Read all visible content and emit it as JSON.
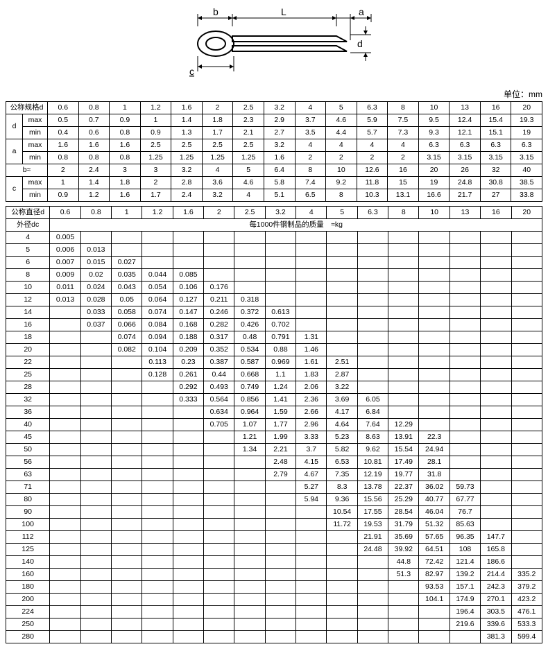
{
  "unit_label": "单位：mm",
  "diagram": {
    "labels": {
      "b": "b",
      "L": "L",
      "a": "a",
      "d": "d",
      "c": "c"
    }
  },
  "nominal_d_label": "公称规格d",
  "nominal_d2_label": "公称直径d",
  "outer_dc_label": "外径dc",
  "mass_header": "每1000件钢制品的质量　≈kg",
  "sizes": [
    "0.6",
    "0.8",
    "1",
    "1.2",
    "1.6",
    "2",
    "2.5",
    "3.2",
    "4",
    "5",
    "6.3",
    "8",
    "10",
    "13",
    "16",
    "20"
  ],
  "rows": {
    "d": {
      "label": "d",
      "max_label": "max",
      "min_label": "min",
      "max": [
        "0.5",
        "0.7",
        "0.9",
        "1",
        "1.4",
        "1.8",
        "2.3",
        "2.9",
        "3.7",
        "4.6",
        "5.9",
        "7.5",
        "9.5",
        "12.4",
        "15.4",
        "19.3"
      ],
      "min": [
        "0.4",
        "0.6",
        "0.8",
        "0.9",
        "1.3",
        "1.7",
        "2.1",
        "2.7",
        "3.5",
        "4.4",
        "5.7",
        "7.3",
        "9.3",
        "12.1",
        "15.1",
        "19"
      ]
    },
    "a": {
      "label": "a",
      "max_label": "max",
      "min_label": "min",
      "max": [
        "1.6",
        "1.6",
        "1.6",
        "2.5",
        "2.5",
        "2.5",
        "2.5",
        "3.2",
        "4",
        "4",
        "4",
        "4",
        "6.3",
        "6.3",
        "6.3",
        "6.3"
      ],
      "min": [
        "0.8",
        "0.8",
        "0.8",
        "1.25",
        "1.25",
        "1.25",
        "1.25",
        "1.6",
        "2",
        "2",
        "2",
        "2",
        "3.15",
        "3.15",
        "3.15",
        "3.15"
      ]
    },
    "b": {
      "label": "b≈",
      "vals": [
        "2",
        "2.4",
        "3",
        "3",
        "3.2",
        "4",
        "5",
        "6.4",
        "8",
        "10",
        "12.6",
        "16",
        "20",
        "26",
        "32",
        "40"
      ]
    },
    "c": {
      "label": "c",
      "max_label": "max",
      "min_label": "min",
      "max": [
        "1",
        "1.4",
        "1.8",
        "2",
        "2.8",
        "3.6",
        "4.6",
        "5.8",
        "7.4",
        "9.2",
        "11.8",
        "15",
        "19",
        "24.8",
        "30.8",
        "38.5"
      ],
      "min": [
        "0.9",
        "1.2",
        "1.6",
        "1.7",
        "2.4",
        "3.2",
        "4",
        "5.1",
        "6.5",
        "8",
        "10.3",
        "13.1",
        "16.6",
        "21.7",
        "27",
        "33.8"
      ]
    }
  },
  "mass_table": {
    "dc": [
      "4",
      "5",
      "6",
      "8",
      "10",
      "12",
      "14",
      "16",
      "18",
      "20",
      "22",
      "25",
      "28",
      "32",
      "36",
      "40",
      "45",
      "50",
      "56",
      "63",
      "71",
      "80",
      "90",
      "100",
      "112",
      "125",
      "140",
      "160",
      "180",
      "200",
      "224",
      "250",
      "280"
    ],
    "data": [
      [
        "0.005",
        "",
        "",
        "",
        "",
        "",
        "",
        "",
        "",
        "",
        "",
        "",
        "",
        "",
        "",
        ""
      ],
      [
        "0.006",
        "0.013",
        "",
        "",
        "",
        "",
        "",
        "",
        "",
        "",
        "",
        "",
        "",
        "",
        "",
        ""
      ],
      [
        "0.007",
        "0.015",
        "0.027",
        "",
        "",
        "",
        "",
        "",
        "",
        "",
        "",
        "",
        "",
        "",
        "",
        ""
      ],
      [
        "0.009",
        "0.02",
        "0.035",
        "0.044",
        "0.085",
        "",
        "",
        "",
        "",
        "",
        "",
        "",
        "",
        "",
        "",
        ""
      ],
      [
        "0.011",
        "0.024",
        "0.043",
        "0.054",
        "0.106",
        "0.176",
        "",
        "",
        "",
        "",
        "",
        "",
        "",
        "",
        "",
        ""
      ],
      [
        "0.013",
        "0.028",
        "0.05",
        "0.064",
        "0.127",
        "0.211",
        "0.318",
        "",
        "",
        "",
        "",
        "",
        "",
        "",
        "",
        ""
      ],
      [
        "",
        "0.033",
        "0.058",
        "0.074",
        "0.147",
        "0.246",
        "0.372",
        "0.613",
        "",
        "",
        "",
        "",
        "",
        "",
        "",
        ""
      ],
      [
        "",
        "0.037",
        "0.066",
        "0.084",
        "0.168",
        "0.282",
        "0.426",
        "0.702",
        "",
        "",
        "",
        "",
        "",
        "",
        "",
        ""
      ],
      [
        "",
        "",
        "0.074",
        "0.094",
        "0.188",
        "0.317",
        "0.48",
        "0.791",
        "1.31",
        "",
        "",
        "",
        "",
        "",
        "",
        ""
      ],
      [
        "",
        "",
        "0.082",
        "0.104",
        "0.209",
        "0.352",
        "0.534",
        "0.88",
        "1.46",
        "",
        "",
        "",
        "",
        "",
        "",
        ""
      ],
      [
        "",
        "",
        "",
        "0.113",
        "0.23",
        "0.387",
        "0.587",
        "0.969",
        "1.61",
        "2.51",
        "",
        "",
        "",
        "",
        "",
        ""
      ],
      [
        "",
        "",
        "",
        "0.128",
        "0.261",
        "0.44",
        "0.668",
        "1.1",
        "1.83",
        "2.87",
        "",
        "",
        "",
        "",
        "",
        ""
      ],
      [
        "",
        "",
        "",
        "",
        "0.292",
        "0.493",
        "0.749",
        "1.24",
        "2.06",
        "3.22",
        "",
        "",
        "",
        "",
        "",
        ""
      ],
      [
        "",
        "",
        "",
        "",
        "0.333",
        "0.564",
        "0.856",
        "1.41",
        "2.36",
        "3.69",
        "6.05",
        "",
        "",
        "",
        "",
        ""
      ],
      [
        "",
        "",
        "",
        "",
        "",
        "0.634",
        "0.964",
        "1.59",
        "2.66",
        "4.17",
        "6.84",
        "",
        "",
        "",
        "",
        ""
      ],
      [
        "",
        "",
        "",
        "",
        "",
        "0.705",
        "1.07",
        "1.77",
        "2.96",
        "4.64",
        "7.64",
        "12.29",
        "",
        "",
        "",
        ""
      ],
      [
        "",
        "",
        "",
        "",
        "",
        "",
        "1.21",
        "1.99",
        "3.33",
        "5.23",
        "8.63",
        "13.91",
        "22.3",
        "",
        "",
        ""
      ],
      [
        "",
        "",
        "",
        "",
        "",
        "",
        "1.34",
        "2.21",
        "3.7",
        "5.82",
        "9.62",
        "15.54",
        "24.94",
        "",
        "",
        ""
      ],
      [
        "",
        "",
        "",
        "",
        "",
        "",
        "",
        "2.48",
        "4.15",
        "6.53",
        "10.81",
        "17.49",
        "28.1",
        "",
        "",
        ""
      ],
      [
        "",
        "",
        "",
        "",
        "",
        "",
        "",
        "2.79",
        "4.67",
        "7.35",
        "12.19",
        "19.77",
        "31.8",
        "",
        "",
        ""
      ],
      [
        "",
        "",
        "",
        "",
        "",
        "",
        "",
        "",
        "5.27",
        "8.3",
        "13.78",
        "22.37",
        "36.02",
        "59.73",
        "",
        ""
      ],
      [
        "",
        "",
        "",
        "",
        "",
        "",
        "",
        "",
        "5.94",
        "9.36",
        "15.56",
        "25.29",
        "40.77",
        "67.77",
        "",
        ""
      ],
      [
        "",
        "",
        "",
        "",
        "",
        "",
        "",
        "",
        "",
        "10.54",
        "17.55",
        "28.54",
        "46.04",
        "76.7",
        "",
        ""
      ],
      [
        "",
        "",
        "",
        "",
        "",
        "",
        "",
        "",
        "",
        "11.72",
        "19.53",
        "31.79",
        "51.32",
        "85.63",
        "",
        ""
      ],
      [
        "",
        "",
        "",
        "",
        "",
        "",
        "",
        "",
        "",
        "",
        "21.91",
        "35.69",
        "57.65",
        "96.35",
        "147.7",
        ""
      ],
      [
        "",
        "",
        "",
        "",
        "",
        "",
        "",
        "",
        "",
        "",
        "24.48",
        "39.92",
        "64.51",
        "108",
        "165.8",
        ""
      ],
      [
        "",
        "",
        "",
        "",
        "",
        "",
        "",
        "",
        "",
        "",
        "",
        "44.8",
        "72.42",
        "121.4",
        "186.6",
        ""
      ],
      [
        "",
        "",
        "",
        "",
        "",
        "",
        "",
        "",
        "",
        "",
        "",
        "51.3",
        "82.97",
        "139.2",
        "214.4",
        "335.2"
      ],
      [
        "",
        "",
        "",
        "",
        "",
        "",
        "",
        "",
        "",
        "",
        "",
        "",
        "93.53",
        "157.1",
        "242.3",
        "379.2"
      ],
      [
        "",
        "",
        "",
        "",
        "",
        "",
        "",
        "",
        "",
        "",
        "",
        "",
        "104.1",
        "174.9",
        "270.1",
        "423.2"
      ],
      [
        "",
        "",
        "",
        "",
        "",
        "",
        "",
        "",
        "",
        "",
        "",
        "",
        "",
        "196.4",
        "303.5",
        "476.1"
      ],
      [
        "",
        "",
        "",
        "",
        "",
        "",
        "",
        "",
        "",
        "",
        "",
        "",
        "",
        "219.6",
        "339.6",
        "533.3"
      ],
      [
        "",
        "",
        "",
        "",
        "",
        "",
        "",
        "",
        "",
        "",
        "",
        "",
        "",
        "",
        "381.3",
        "599.4"
      ]
    ]
  }
}
